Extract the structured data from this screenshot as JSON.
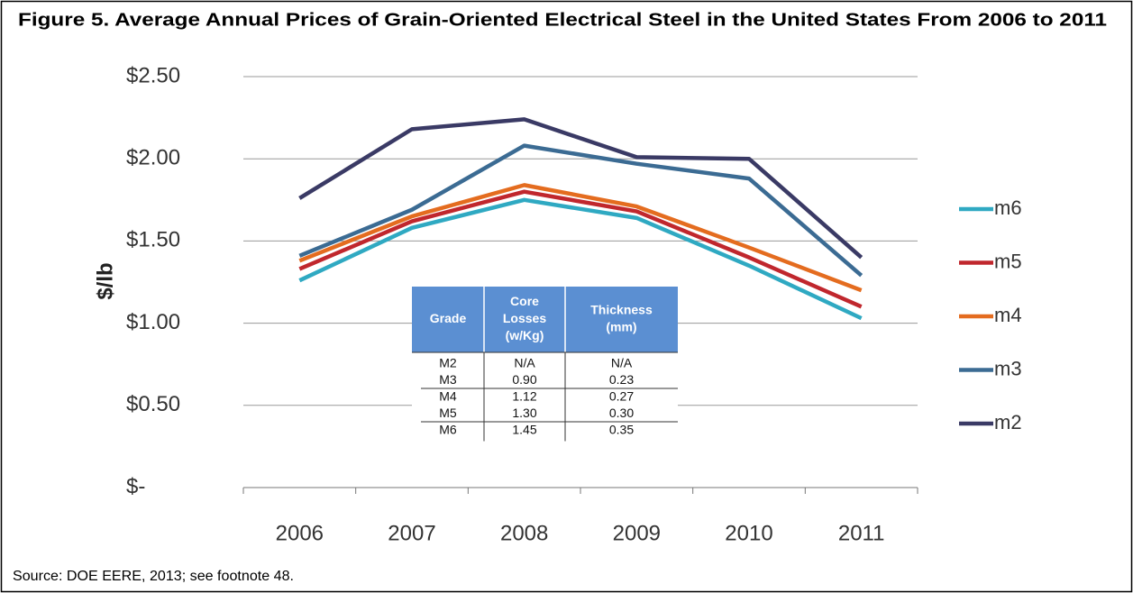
{
  "chart_data": {
    "type": "line",
    "title": "Figure 5. Average Annual Prices of Grain-Oriented Electrical Steel in the United States From 2006 to 2011",
    "y_label": "$/lb",
    "source": "Source: DOE EERE, 2013; see footnote 48.",
    "categories": [
      "2006",
      "2007",
      "2008",
      "2009",
      "2010",
      "2011"
    ],
    "ylim": [
      0,
      2.5
    ],
    "yticks": [
      {
        "value": 0,
        "label": "$-"
      },
      {
        "value": 0.5,
        "label": "$0.50"
      },
      {
        "value": 1,
        "label": "$1.00"
      },
      {
        "value": 1.5,
        "label": "$1.50"
      },
      {
        "value": 2,
        "label": "$2.00"
      },
      {
        "value": 2.5,
        "label": "$2.50"
      }
    ],
    "grid": true,
    "legend": "right",
    "series": [
      {
        "name": "m6",
        "color": "#2fa9c2",
        "values": [
          1.26,
          1.58,
          1.75,
          1.64,
          1.35,
          1.03
        ]
      },
      {
        "name": "m5",
        "color": "#c0272d",
        "values": [
          1.33,
          1.62,
          1.8,
          1.68,
          1.4,
          1.1
        ]
      },
      {
        "name": "m4",
        "color": "#e46c1f",
        "values": [
          1.38,
          1.65,
          1.84,
          1.71,
          1.46,
          1.2
        ]
      },
      {
        "name": "m3",
        "color": "#3b6b93",
        "values": [
          1.41,
          1.69,
          2.08,
          1.97,
          1.88,
          1.29
        ]
      },
      {
        "name": "m2",
        "color": "#3a3a65",
        "values": [
          1.76,
          2.18,
          2.24,
          2.01,
          2.0,
          1.4
        ]
      }
    ],
    "table": {
      "header": [
        [
          "Grade"
        ],
        [
          "Core",
          "Losses",
          "(w/Kg)"
        ],
        [
          "Thickness",
          "(mm)"
        ]
      ],
      "rows": [
        [
          "M2",
          "N/A",
          "N/A"
        ],
        [
          "M3",
          "0.90",
          "0.23"
        ],
        [
          "M4",
          "1.12",
          "0.27"
        ],
        [
          "M5",
          "1.30",
          "0.30"
        ],
        [
          "M6",
          "1.45",
          "0.35"
        ]
      ]
    }
  }
}
